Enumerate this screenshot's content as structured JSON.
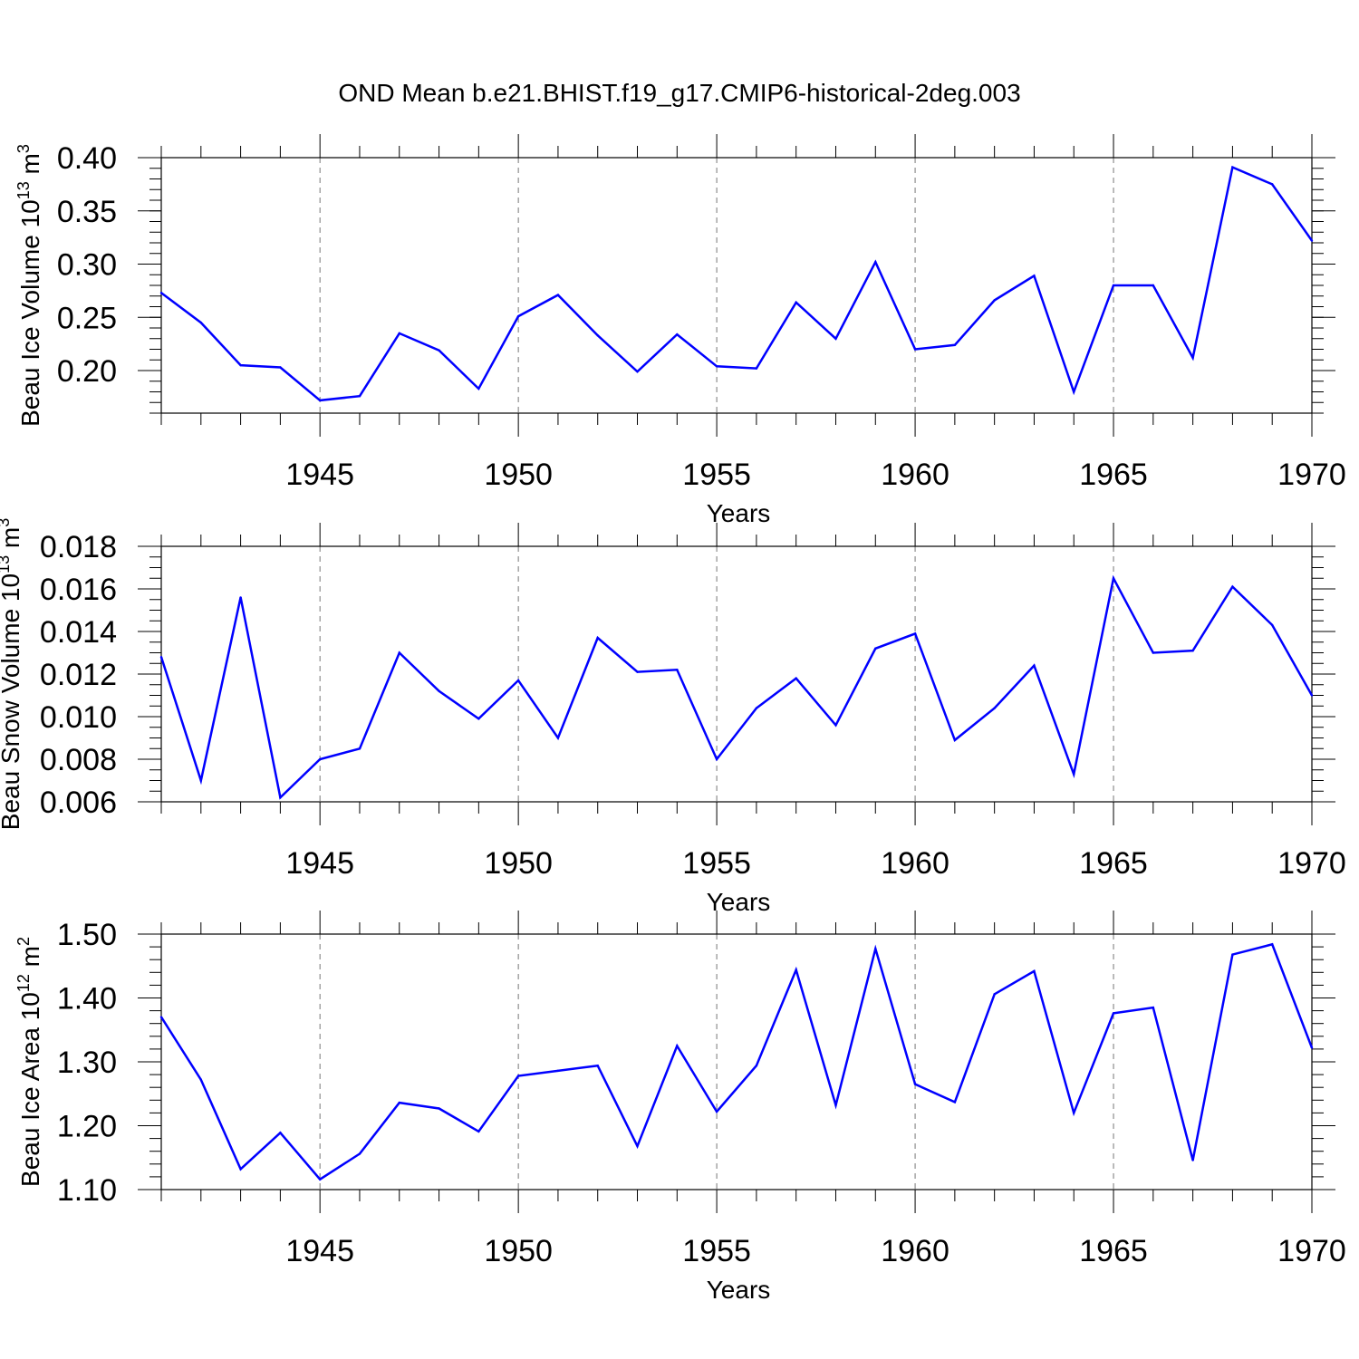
{
  "figure": {
    "title": "OND Mean b.e21.BHIST.f19_g17.CMIP6-historical-2deg.003"
  },
  "chart_data": [
    {
      "type": "line",
      "title": "OND Mean b.e21.BHIST.f19_g17.CMIP6-historical-2deg.003",
      "xlabel": "Years",
      "ylabel": "Beau Ice Volume 10",
      "ylabel_exp": "13",
      "ylabel_unit": "m",
      "ylabel_unit_exp": "3",
      "xlim": [
        1941,
        1970
      ],
      "ylim": [
        0.16,
        0.4
      ],
      "xticks": [
        1945,
        1950,
        1955,
        1960,
        1965,
        1970
      ],
      "yticks": [
        0.2,
        0.25,
        0.3,
        0.35,
        0.4
      ],
      "ytick_labels": [
        "0.20",
        "0.25",
        "0.30",
        "0.35",
        "0.40"
      ],
      "ytick_minor": 0.01,
      "grid": "vertical dashed at major x ticks",
      "line_color": "#0000ff",
      "x": [
        1941,
        1942,
        1943,
        1944,
        1945,
        1946,
        1947,
        1948,
        1949,
        1950,
        1951,
        1952,
        1953,
        1954,
        1955,
        1956,
        1957,
        1958,
        1959,
        1960,
        1961,
        1962,
        1963,
        1964,
        1965,
        1966,
        1967,
        1968,
        1969,
        1970
      ],
      "series": [
        {
          "name": "Beau Ice Volume",
          "values": [
            0.273,
            0.245,
            0.205,
            0.203,
            0.172,
            0.176,
            0.235,
            0.219,
            0.183,
            0.251,
            0.271,
            0.233,
            0.199,
            0.234,
            0.204,
            0.202,
            0.264,
            0.23,
            0.302,
            0.22,
            0.224,
            0.266,
            0.289,
            0.18,
            0.28,
            0.28,
            0.212,
            0.391,
            0.375,
            0.322
          ]
        }
      ]
    },
    {
      "type": "line",
      "xlabel": "Years",
      "ylabel": "Beau Snow Volume 10",
      "ylabel_exp": "13",
      "ylabel_unit": "m",
      "ylabel_unit_exp": "3",
      "xlim": [
        1941,
        1970
      ],
      "ylim": [
        0.006,
        0.018
      ],
      "xticks": [
        1945,
        1950,
        1955,
        1960,
        1965,
        1970
      ],
      "yticks": [
        0.006,
        0.008,
        0.01,
        0.012,
        0.014,
        0.016,
        0.018
      ],
      "ytick_labels": [
        "0.006",
        "0.008",
        "0.010",
        "0.012",
        "0.014",
        "0.016",
        "0.018"
      ],
      "ytick_minor": 0.0005,
      "grid": "vertical dashed at major x ticks",
      "line_color": "#0000ff",
      "x": [
        1941,
        1942,
        1943,
        1944,
        1945,
        1946,
        1947,
        1948,
        1949,
        1950,
        1951,
        1952,
        1953,
        1954,
        1955,
        1956,
        1957,
        1958,
        1959,
        1960,
        1961,
        1962,
        1963,
        1964,
        1965,
        1966,
        1967,
        1968,
        1969,
        1970
      ],
      "series": [
        {
          "name": "Beau Snow Volume",
          "values": [
            0.0128,
            0.007,
            0.0156,
            0.0062,
            0.008,
            0.0085,
            0.013,
            0.0112,
            0.0099,
            0.0117,
            0.009,
            0.0137,
            0.0121,
            0.0122,
            0.008,
            0.0104,
            0.0118,
            0.0096,
            0.0132,
            0.0139,
            0.0089,
            0.0104,
            0.0124,
            0.0073,
            0.0165,
            0.013,
            0.0131,
            0.0161,
            0.0143,
            0.011
          ]
        }
      ]
    },
    {
      "type": "line",
      "xlabel": "Years",
      "ylabel": "Beau Ice Area 10",
      "ylabel_exp": "12",
      "ylabel_unit": "m",
      "ylabel_unit_exp": "2",
      "xlim": [
        1941,
        1970
      ],
      "ylim": [
        1.1,
        1.5
      ],
      "xticks": [
        1945,
        1950,
        1955,
        1960,
        1965,
        1970
      ],
      "yticks": [
        1.1,
        1.2,
        1.3,
        1.4,
        1.5
      ],
      "ytick_labels": [
        "1.10",
        "1.20",
        "1.30",
        "1.40",
        "1.50"
      ],
      "ytick_minor": 0.02,
      "grid": "vertical dashed at major x ticks",
      "line_color": "#0000ff",
      "x": [
        1941,
        1942,
        1943,
        1944,
        1945,
        1946,
        1947,
        1948,
        1949,
        1950,
        1951,
        1952,
        1953,
        1954,
        1955,
        1956,
        1957,
        1958,
        1959,
        1960,
        1961,
        1962,
        1963,
        1964,
        1965,
        1966,
        1967,
        1968,
        1969,
        1970
      ],
      "series": [
        {
          "name": "Beau Ice Area",
          "values": [
            1.37,
            1.272,
            1.132,
            1.189,
            1.116,
            1.156,
            1.236,
            1.227,
            1.191,
            1.278,
            1.286,
            1.294,
            1.168,
            1.325,
            1.222,
            1.294,
            1.444,
            1.232,
            1.477,
            1.265,
            1.237,
            1.406,
            1.442,
            1.22,
            1.376,
            1.385,
            1.146,
            1.468,
            1.484,
            1.322
          ]
        }
      ]
    }
  ]
}
